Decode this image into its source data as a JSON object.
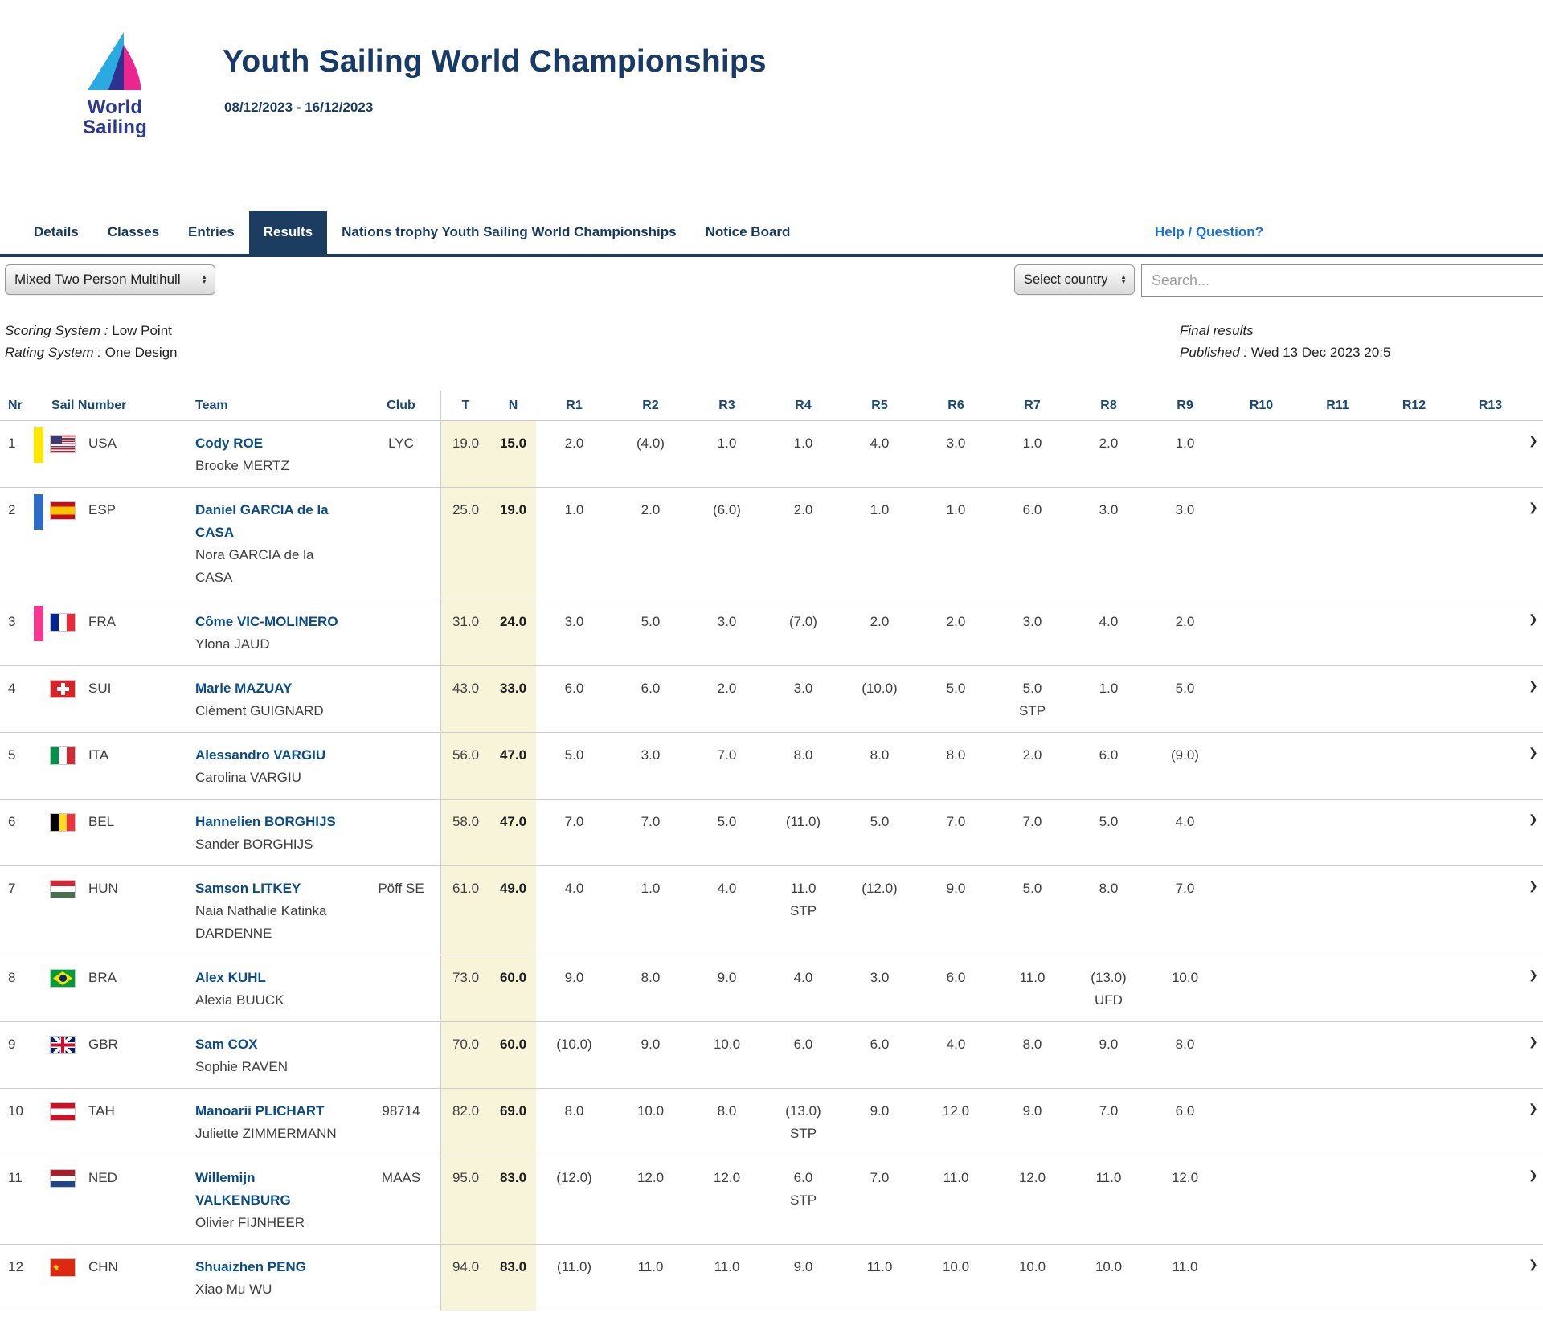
{
  "colors": {
    "accent_navy": "#1c3c60",
    "link_blue": "#1c72d4",
    "team_link": "#0a4c85",
    "highlight_column_bg": "#f7f4da"
  },
  "header": {
    "logo_line1": "World",
    "logo_line2": "Sailing",
    "title": "Youth Sailing World Championships",
    "date_range": "08/12/2023 - 16/12/2023"
  },
  "nav": {
    "tabs": [
      {
        "label": "Details",
        "active": false
      },
      {
        "label": "Classes",
        "active": false
      },
      {
        "label": "Entries",
        "active": false
      },
      {
        "label": "Results",
        "active": true
      },
      {
        "label": "Nations trophy Youth Sailing World Championships",
        "active": false
      },
      {
        "label": "Notice Board",
        "active": false
      }
    ],
    "help_label": "Help / Question?"
  },
  "filters": {
    "class_selected": "Mixed Two Person Multihull",
    "country_selected": "Select country",
    "search_placeholder": "Search..."
  },
  "info": {
    "scoring_label": "Scoring System :",
    "scoring_value": "Low Point",
    "rating_label": "Rating System :",
    "rating_value": "One Design",
    "final_status": "Final results",
    "published_label": "Published :",
    "published_value": "Wed 13 Dec 2023 20:5"
  },
  "table": {
    "headers": [
      "Nr",
      "Sail Number",
      "Team",
      "Club",
      "T",
      "N",
      "R1",
      "R2",
      "R3",
      "R4",
      "R5",
      "R6",
      "R7",
      "R8",
      "R9",
      "R10",
      "R11",
      "R12",
      "R13"
    ],
    "rows": [
      {
        "nr": "1",
        "bar": "#ffe800",
        "flag": "usa",
        "country": "USA",
        "skipper_lines": [
          "Cody ROE"
        ],
        "crew_lines": [
          "Brooke MERTZ"
        ],
        "club": "LYC",
        "total": "19.0",
        "net": "15.0",
        "races": [
          [
            "2.0",
            ""
          ],
          [
            "(4.0)",
            ""
          ],
          [
            "1.0",
            ""
          ],
          [
            "1.0",
            ""
          ],
          [
            "4.0",
            ""
          ],
          [
            "3.0",
            ""
          ],
          [
            "1.0",
            ""
          ],
          [
            "2.0",
            ""
          ],
          [
            "1.0",
            ""
          ],
          [
            "",
            ""
          ],
          [
            "",
            ""
          ],
          [
            "",
            ""
          ],
          [
            "",
            ""
          ]
        ]
      },
      {
        "nr": "2",
        "bar": "#2f6bc6",
        "flag": "esp",
        "country": "ESP",
        "skipper_lines": [
          "Daniel GARCIA de la",
          "CASA"
        ],
        "crew_lines": [
          "Nora GARCIA de la",
          "CASA"
        ],
        "club": "",
        "total": "25.0",
        "net": "19.0",
        "races": [
          [
            "1.0",
            ""
          ],
          [
            "2.0",
            ""
          ],
          [
            "(6.0)",
            ""
          ],
          [
            "2.0",
            ""
          ],
          [
            "1.0",
            ""
          ],
          [
            "1.0",
            ""
          ],
          [
            "6.0",
            ""
          ],
          [
            "3.0",
            ""
          ],
          [
            "3.0",
            ""
          ],
          [
            "",
            ""
          ],
          [
            "",
            ""
          ],
          [
            "",
            ""
          ],
          [
            "",
            ""
          ]
        ]
      },
      {
        "nr": "3",
        "bar": "#f4388f",
        "flag": "fra",
        "country": "FRA",
        "skipper_lines": [
          "Côme VIC-MOLINERO"
        ],
        "crew_lines": [
          "Ylona JAUD"
        ],
        "club": "",
        "total": "31.0",
        "net": "24.0",
        "races": [
          [
            "3.0",
            ""
          ],
          [
            "5.0",
            ""
          ],
          [
            "3.0",
            ""
          ],
          [
            "(7.0)",
            ""
          ],
          [
            "2.0",
            ""
          ],
          [
            "2.0",
            ""
          ],
          [
            "3.0",
            ""
          ],
          [
            "4.0",
            ""
          ],
          [
            "2.0",
            ""
          ],
          [
            "",
            ""
          ],
          [
            "",
            ""
          ],
          [
            "",
            ""
          ],
          [
            "",
            ""
          ]
        ]
      },
      {
        "nr": "4",
        "bar": "",
        "flag": "sui",
        "country": "SUI",
        "skipper_lines": [
          "Marie MAZUAY"
        ],
        "crew_lines": [
          "Clément GUIGNARD"
        ],
        "club": "",
        "total": "43.0",
        "net": "33.0",
        "races": [
          [
            "6.0",
            ""
          ],
          [
            "6.0",
            ""
          ],
          [
            "2.0",
            ""
          ],
          [
            "3.0",
            ""
          ],
          [
            "(10.0)",
            ""
          ],
          [
            "5.0",
            ""
          ],
          [
            "5.0",
            "STP"
          ],
          [
            "1.0",
            ""
          ],
          [
            "5.0",
            ""
          ],
          [
            "",
            ""
          ],
          [
            "",
            ""
          ],
          [
            "",
            ""
          ],
          [
            "",
            ""
          ]
        ]
      },
      {
        "nr": "5",
        "bar": "",
        "flag": "ita",
        "country": "ITA",
        "skipper_lines": [
          "Alessandro VARGIU"
        ],
        "crew_lines": [
          "Carolina VARGIU"
        ],
        "club": "",
        "total": "56.0",
        "net": "47.0",
        "races": [
          [
            "5.0",
            ""
          ],
          [
            "3.0",
            ""
          ],
          [
            "7.0",
            ""
          ],
          [
            "8.0",
            ""
          ],
          [
            "8.0",
            ""
          ],
          [
            "8.0",
            ""
          ],
          [
            "2.0",
            ""
          ],
          [
            "6.0",
            ""
          ],
          [
            "(9.0)",
            ""
          ],
          [
            "",
            ""
          ],
          [
            "",
            ""
          ],
          [
            "",
            ""
          ],
          [
            "",
            ""
          ]
        ]
      },
      {
        "nr": "6",
        "bar": "",
        "flag": "bel",
        "country": "BEL",
        "skipper_lines": [
          "Hannelien BORGHIJS"
        ],
        "crew_lines": [
          "Sander BORGHIJS"
        ],
        "club": "",
        "total": "58.0",
        "net": "47.0",
        "races": [
          [
            "7.0",
            ""
          ],
          [
            "7.0",
            ""
          ],
          [
            "5.0",
            ""
          ],
          [
            "(11.0)",
            ""
          ],
          [
            "5.0",
            ""
          ],
          [
            "7.0",
            ""
          ],
          [
            "7.0",
            ""
          ],
          [
            "5.0",
            ""
          ],
          [
            "4.0",
            ""
          ],
          [
            "",
            ""
          ],
          [
            "",
            ""
          ],
          [
            "",
            ""
          ],
          [
            "",
            ""
          ]
        ]
      },
      {
        "nr": "7",
        "bar": "",
        "flag": "hun",
        "country": "HUN",
        "skipper_lines": [
          "Samson LITKEY"
        ],
        "crew_lines": [
          "Naia Nathalie Katinka",
          "DARDENNE"
        ],
        "club": "Pöff SE",
        "total": "61.0",
        "net": "49.0",
        "races": [
          [
            "4.0",
            ""
          ],
          [
            "1.0",
            ""
          ],
          [
            "4.0",
            ""
          ],
          [
            "11.0",
            "STP"
          ],
          [
            "(12.0)",
            ""
          ],
          [
            "9.0",
            ""
          ],
          [
            "5.0",
            ""
          ],
          [
            "8.0",
            ""
          ],
          [
            "7.0",
            ""
          ],
          [
            "",
            ""
          ],
          [
            "",
            ""
          ],
          [
            "",
            ""
          ],
          [
            "",
            ""
          ]
        ]
      },
      {
        "nr": "8",
        "bar": "",
        "flag": "bra",
        "country": "BRA",
        "skipper_lines": [
          "Alex KUHL"
        ],
        "crew_lines": [
          "Alexia BUUCK"
        ],
        "club": "",
        "total": "73.0",
        "net": "60.0",
        "races": [
          [
            "9.0",
            ""
          ],
          [
            "8.0",
            ""
          ],
          [
            "9.0",
            ""
          ],
          [
            "4.0",
            ""
          ],
          [
            "3.0",
            ""
          ],
          [
            "6.0",
            ""
          ],
          [
            "11.0",
            ""
          ],
          [
            "(13.0)",
            "UFD"
          ],
          [
            "10.0",
            ""
          ],
          [
            "",
            ""
          ],
          [
            "",
            ""
          ],
          [
            "",
            ""
          ],
          [
            "",
            ""
          ]
        ]
      },
      {
        "nr": "9",
        "bar": "",
        "flag": "gbr",
        "country": "GBR",
        "skipper_lines": [
          "Sam COX"
        ],
        "crew_lines": [
          "Sophie RAVEN"
        ],
        "club": "",
        "total": "70.0",
        "net": "60.0",
        "races": [
          [
            "(10.0)",
            ""
          ],
          [
            "9.0",
            ""
          ],
          [
            "10.0",
            ""
          ],
          [
            "6.0",
            ""
          ],
          [
            "6.0",
            ""
          ],
          [
            "4.0",
            ""
          ],
          [
            "8.0",
            ""
          ],
          [
            "9.0",
            ""
          ],
          [
            "8.0",
            ""
          ],
          [
            "",
            ""
          ],
          [
            "",
            ""
          ],
          [
            "",
            ""
          ],
          [
            "",
            ""
          ]
        ]
      },
      {
        "nr": "10",
        "bar": "",
        "flag": "tah",
        "country": "TAH",
        "skipper_lines": [
          "Manoarii PLICHART"
        ],
        "crew_lines": [
          "Juliette ZIMMERMANN"
        ],
        "club": "98714",
        "total": "82.0",
        "net": "69.0",
        "races": [
          [
            "8.0",
            ""
          ],
          [
            "10.0",
            ""
          ],
          [
            "8.0",
            ""
          ],
          [
            "(13.0)",
            "STP"
          ],
          [
            "9.0",
            ""
          ],
          [
            "12.0",
            ""
          ],
          [
            "9.0",
            ""
          ],
          [
            "7.0",
            ""
          ],
          [
            "6.0",
            ""
          ],
          [
            "",
            ""
          ],
          [
            "",
            ""
          ],
          [
            "",
            ""
          ],
          [
            "",
            ""
          ]
        ]
      },
      {
        "nr": "11",
        "bar": "",
        "flag": "ned",
        "country": "NED",
        "skipper_lines": [
          "Willemijn",
          "VALKENBURG"
        ],
        "crew_lines": [
          "Olivier FIJNHEER"
        ],
        "club": "MAAS",
        "total": "95.0",
        "net": "83.0",
        "races": [
          [
            "(12.0)",
            ""
          ],
          [
            "12.0",
            ""
          ],
          [
            "12.0",
            ""
          ],
          [
            "6.0",
            "STP"
          ],
          [
            "7.0",
            ""
          ],
          [
            "11.0",
            ""
          ],
          [
            "12.0",
            ""
          ],
          [
            "11.0",
            ""
          ],
          [
            "12.0",
            ""
          ],
          [
            "",
            ""
          ],
          [
            "",
            ""
          ],
          [
            "",
            ""
          ],
          [
            "",
            ""
          ]
        ]
      },
      {
        "nr": "12",
        "bar": "",
        "flag": "chn",
        "country": "CHN",
        "skipper_lines": [
          "Shuaizhen PENG"
        ],
        "crew_lines": [
          "Xiao Mu WU"
        ],
        "club": "",
        "total": "94.0",
        "net": "83.0",
        "races": [
          [
            "(11.0)",
            ""
          ],
          [
            "11.0",
            ""
          ],
          [
            "11.0",
            ""
          ],
          [
            "9.0",
            ""
          ],
          [
            "11.0",
            ""
          ],
          [
            "10.0",
            ""
          ],
          [
            "10.0",
            ""
          ],
          [
            "10.0",
            ""
          ],
          [
            "11.0",
            ""
          ],
          [
            "",
            ""
          ],
          [
            "",
            ""
          ],
          [
            "",
            ""
          ],
          [
            "",
            ""
          ]
        ]
      }
    ]
  }
}
